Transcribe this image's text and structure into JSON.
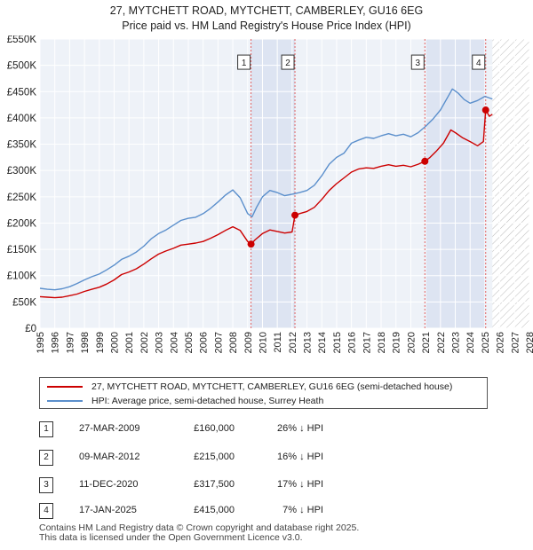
{
  "chart_data": {
    "type": "line",
    "title": "27, MYTCHETT ROAD, MYTCHETT, CAMBERLEY, GU16 6EG",
    "subtitle": "Price paid vs. HM Land Registry's House Price Index (HPI)",
    "xlim": [
      1995,
      2028
    ],
    "ylim": [
      0,
      550000
    ],
    "xticks": [
      "1995",
      "1996",
      "1997",
      "1998",
      "1999",
      "2000",
      "2001",
      "2002",
      "2003",
      "2004",
      "2005",
      "2006",
      "2007",
      "2008",
      "2009",
      "2010",
      "2011",
      "2012",
      "2013",
      "2014",
      "2015",
      "2016",
      "2017",
      "2018",
      "2019",
      "2020",
      "2021",
      "2022",
      "2023",
      "2024",
      "2025",
      "2026",
      "2027",
      "2028"
    ],
    "yticks": [
      {
        "value": 0,
        "label": "£0"
      },
      {
        "value": 50000,
        "label": "£50K"
      },
      {
        "value": 100000,
        "label": "£100K"
      },
      {
        "value": 150000,
        "label": "£150K"
      },
      {
        "value": 200000,
        "label": "£200K"
      },
      {
        "value": 250000,
        "label": "£250K"
      },
      {
        "value": 300000,
        "label": "£300K"
      },
      {
        "value": 350000,
        "label": "£350K"
      },
      {
        "value": 400000,
        "label": "£400K"
      },
      {
        "value": 450000,
        "label": "£450K"
      },
      {
        "value": 500000,
        "label": "£500K"
      },
      {
        "value": 550000,
        "label": "£550K"
      }
    ],
    "grid": true,
    "data_end": 2025.5,
    "series": [
      {
        "name": "27, MYTCHETT ROAD, MYTCHETT, CAMBERLEY, GU16 6EG (semi-detached house)",
        "color": "#cc0000",
        "points": [
          [
            1995.0,
            60000
          ],
          [
            1995.5,
            59000
          ],
          [
            1996.0,
            58000
          ],
          [
            1996.5,
            59000
          ],
          [
            1997.0,
            62000
          ],
          [
            1997.5,
            65000
          ],
          [
            1998.0,
            70000
          ],
          [
            1998.5,
            74000
          ],
          [
            1999.0,
            78000
          ],
          [
            1999.5,
            84000
          ],
          [
            2000.0,
            92000
          ],
          [
            2000.5,
            102000
          ],
          [
            2001.0,
            107000
          ],
          [
            2001.5,
            113000
          ],
          [
            2002.0,
            122000
          ],
          [
            2002.5,
            132000
          ],
          [
            2003.0,
            141000
          ],
          [
            2003.5,
            147000
          ],
          [
            2004.0,
            152000
          ],
          [
            2004.5,
            158000
          ],
          [
            2005.0,
            160000
          ],
          [
            2005.5,
            162000
          ],
          [
            2006.0,
            165000
          ],
          [
            2006.5,
            171000
          ],
          [
            2007.0,
            178000
          ],
          [
            2007.5,
            186000
          ],
          [
            2008.0,
            193000
          ],
          [
            2008.5,
            186000
          ],
          [
            2009.0,
            165000
          ],
          [
            2009.23,
            160000
          ],
          [
            2009.5,
            168000
          ],
          [
            2010.0,
            180000
          ],
          [
            2010.5,
            187000
          ],
          [
            2011.0,
            184000
          ],
          [
            2011.5,
            181000
          ],
          [
            2012.0,
            183000
          ],
          [
            2012.19,
            215000
          ],
          [
            2012.5,
            218000
          ],
          [
            2013.0,
            222000
          ],
          [
            2013.5,
            230000
          ],
          [
            2014.0,
            245000
          ],
          [
            2014.5,
            262000
          ],
          [
            2015.0,
            275000
          ],
          [
            2015.5,
            286000
          ],
          [
            2016.0,
            297000
          ],
          [
            2016.5,
            303000
          ],
          [
            2017.0,
            305000
          ],
          [
            2017.5,
            304000
          ],
          [
            2018.0,
            308000
          ],
          [
            2018.5,
            311000
          ],
          [
            2019.0,
            308000
          ],
          [
            2019.5,
            310000
          ],
          [
            2020.0,
            307000
          ],
          [
            2020.5,
            312000
          ],
          [
            2020.95,
            317500
          ],
          [
            2021.3,
            325000
          ],
          [
            2021.7,
            336000
          ],
          [
            2022.2,
            352000
          ],
          [
            2022.7,
            377000
          ],
          [
            2023.0,
            372000
          ],
          [
            2023.5,
            362000
          ],
          [
            2024.0,
            355000
          ],
          [
            2024.5,
            347000
          ],
          [
            2024.9,
            355000
          ],
          [
            2025.05,
            415000
          ],
          [
            2025.3,
            403000
          ],
          [
            2025.5,
            407000
          ]
        ]
      },
      {
        "name": "HPI: Average price, semi-detached house, Surrey Heath",
        "color": "#5b8fcc",
        "points": [
          [
            1995.0,
            76000
          ],
          [
            1995.5,
            74000
          ],
          [
            1996.0,
            73000
          ],
          [
            1996.5,
            75000
          ],
          [
            1997.0,
            79000
          ],
          [
            1997.5,
            85000
          ],
          [
            1998.0,
            92000
          ],
          [
            1998.5,
            98000
          ],
          [
            1999.0,
            103000
          ],
          [
            1999.5,
            111000
          ],
          [
            2000.0,
            120000
          ],
          [
            2000.5,
            131000
          ],
          [
            2001.0,
            137000
          ],
          [
            2001.5,
            145000
          ],
          [
            2002.0,
            156000
          ],
          [
            2002.5,
            170000
          ],
          [
            2003.0,
            180000
          ],
          [
            2003.5,
            187000
          ],
          [
            2004.0,
            196000
          ],
          [
            2004.5,
            205000
          ],
          [
            2005.0,
            209000
          ],
          [
            2005.5,
            211000
          ],
          [
            2006.0,
            218000
          ],
          [
            2006.5,
            228000
          ],
          [
            2007.0,
            240000
          ],
          [
            2007.5,
            253000
          ],
          [
            2008.0,
            263000
          ],
          [
            2008.5,
            248000
          ],
          [
            2009.0,
            218000
          ],
          [
            2009.3,
            212000
          ],
          [
            2009.6,
            230000
          ],
          [
            2010.0,
            250000
          ],
          [
            2010.5,
            262000
          ],
          [
            2011.0,
            258000
          ],
          [
            2011.5,
            252000
          ],
          [
            2012.0,
            255000
          ],
          [
            2012.5,
            258000
          ],
          [
            2013.0,
            262000
          ],
          [
            2013.5,
            272000
          ],
          [
            2014.0,
            290000
          ],
          [
            2014.5,
            312000
          ],
          [
            2015.0,
            325000
          ],
          [
            2015.5,
            333000
          ],
          [
            2016.0,
            352000
          ],
          [
            2016.5,
            358000
          ],
          [
            2017.0,
            363000
          ],
          [
            2017.5,
            361000
          ],
          [
            2018.0,
            366000
          ],
          [
            2018.5,
            370000
          ],
          [
            2019.0,
            366000
          ],
          [
            2019.5,
            369000
          ],
          [
            2020.0,
            364000
          ],
          [
            2020.5,
            372000
          ],
          [
            2021.0,
            384000
          ],
          [
            2021.5,
            398000
          ],
          [
            2022.0,
            415000
          ],
          [
            2022.5,
            440000
          ],
          [
            2022.8,
            455000
          ],
          [
            2023.2,
            447000
          ],
          [
            2023.6,
            435000
          ],
          [
            2024.0,
            428000
          ],
          [
            2024.5,
            433000
          ],
          [
            2025.0,
            441000
          ],
          [
            2025.5,
            436000
          ]
        ]
      }
    ],
    "sales": [
      {
        "n": "1",
        "x": 2009.23,
        "price": 160000
      },
      {
        "n": "2",
        "x": 2012.19,
        "price": 215000
      },
      {
        "n": "3",
        "x": 2020.95,
        "price": 317500
      },
      {
        "n": "4",
        "x": 2025.05,
        "price": 415000
      }
    ]
  },
  "legend": {
    "property": "27, MYTCHETT ROAD, MYTCHETT, CAMBERLEY, GU16 6EG (semi-detached house)",
    "hpi": "HPI: Average price, semi-detached house, Surrey Heath"
  },
  "transactions": [
    {
      "n": "1",
      "date": "27-MAR-2009",
      "price": "£160,000",
      "pct": "26% ↓ HPI"
    },
    {
      "n": "2",
      "date": "09-MAR-2012",
      "price": "£215,000",
      "pct": "16% ↓ HPI"
    },
    {
      "n": "3",
      "date": "11-DEC-2020",
      "price": "£317,500",
      "pct": "17% ↓ HPI"
    },
    {
      "n": "4",
      "date": "17-JAN-2025",
      "price": "£415,000",
      "pct": "7% ↓ HPI"
    }
  ],
  "footer": {
    "line1": "Contains HM Land Registry data © Crown copyright and database right 2025.",
    "line2": "This data is licensed under the Open Government Licence v3.0."
  }
}
